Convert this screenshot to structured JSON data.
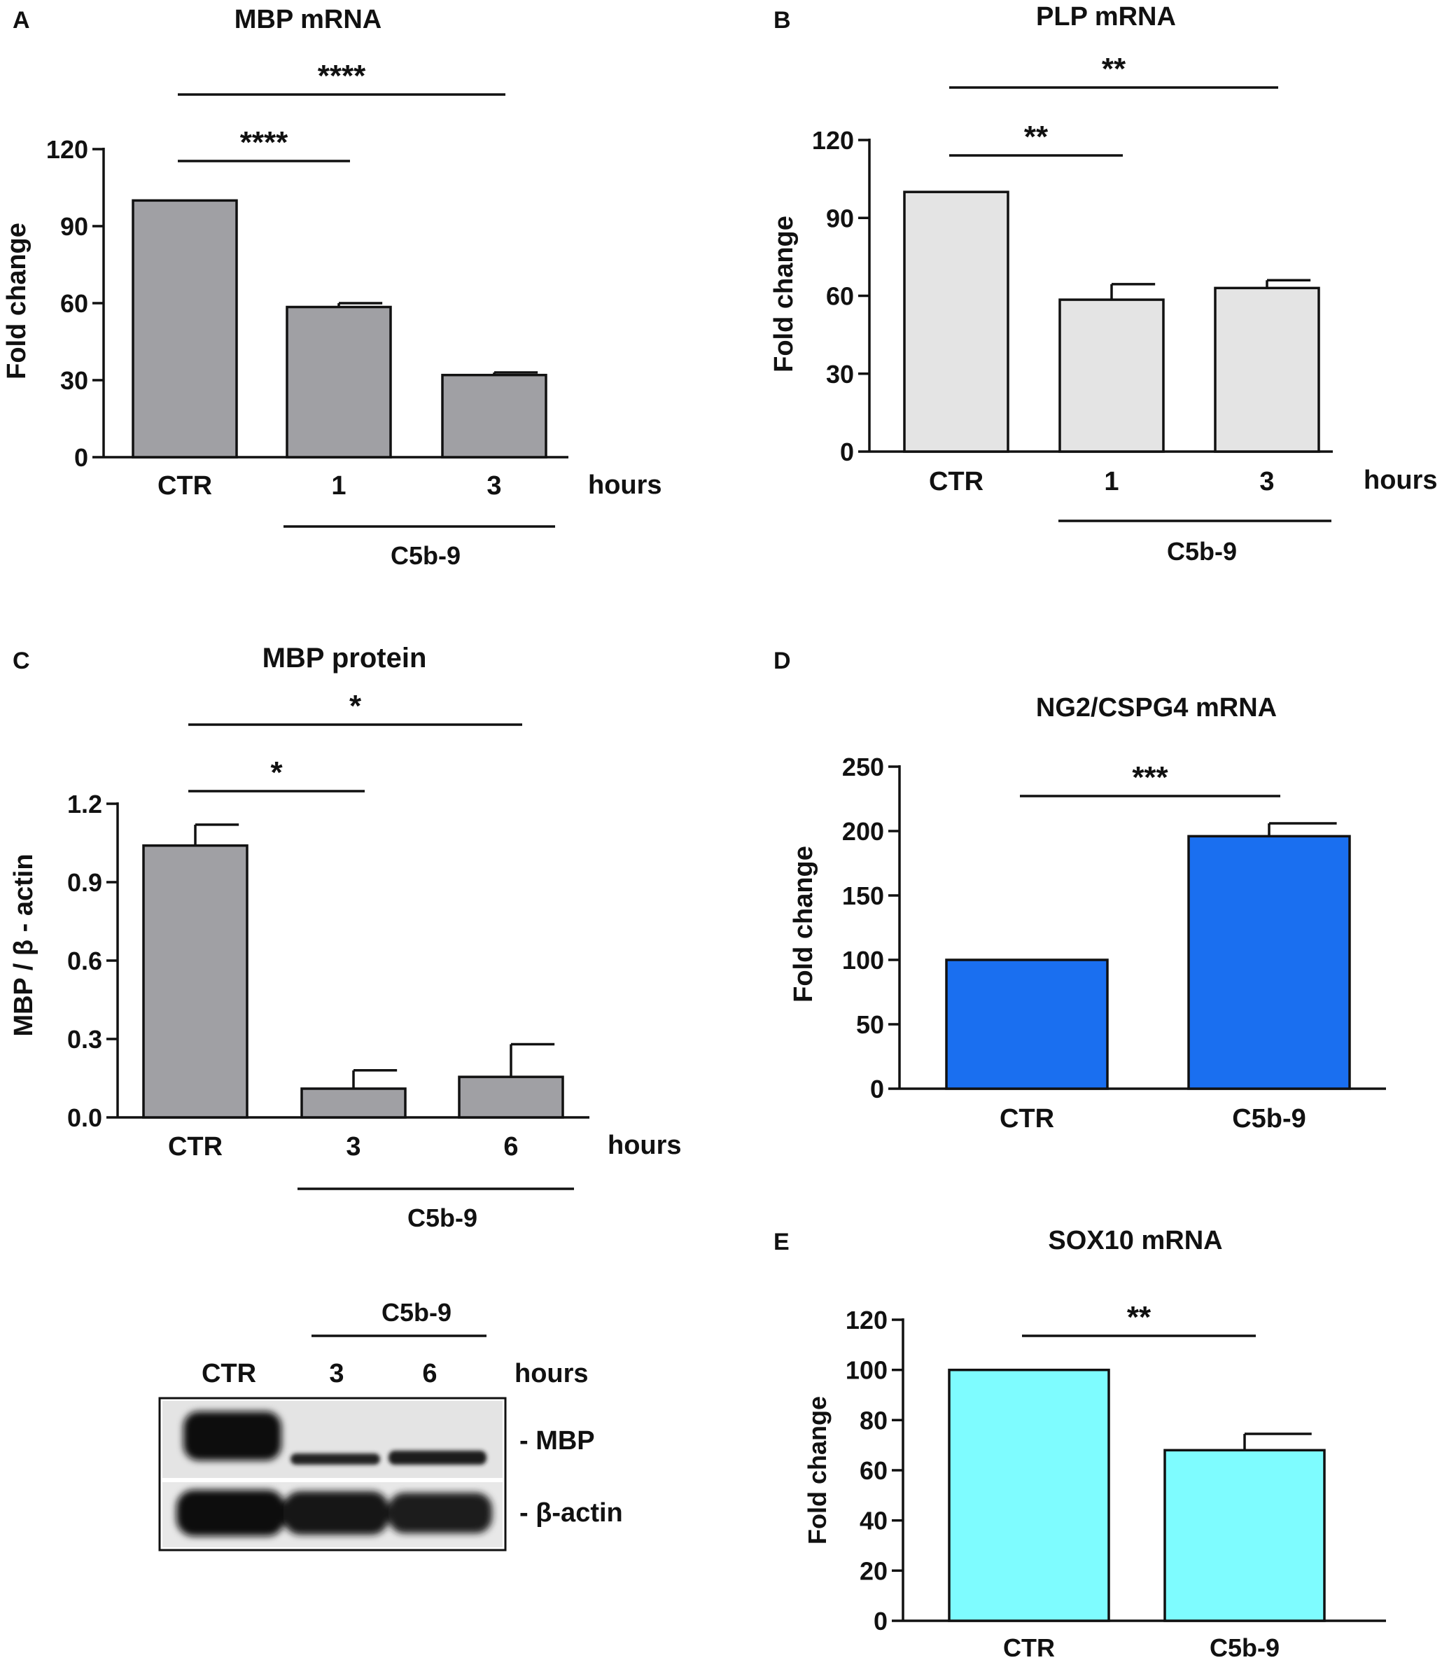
{
  "chart_data": [
    {
      "id": "A",
      "type": "bar",
      "panel_label": "A",
      "title": "MBP mRNA",
      "ylabel": "Fold change",
      "xlabel": "hours",
      "categories": [
        "CTR",
        "1",
        "3"
      ],
      "values": [
        100,
        58.5,
        32
      ],
      "errors": [
        0,
        1.5,
        1
      ],
      "ylim": [
        0,
        120
      ],
      "yticks": [
        "0",
        "30",
        "60",
        "90",
        "120"
      ],
      "bar_color": "#a0a0a4",
      "group_label": "C5b-9",
      "significance": [
        {
          "from": 0,
          "to": 1,
          "label": "****"
        },
        {
          "from": 0,
          "to": 2,
          "label": "****"
        }
      ]
    },
    {
      "id": "B",
      "type": "bar",
      "panel_label": "B",
      "title": "PLP mRNA",
      "ylabel": "Fold change",
      "xlabel": "hours",
      "categories": [
        "CTR",
        "1",
        "3"
      ],
      "values": [
        100,
        58.5,
        63
      ],
      "errors": [
        0,
        6,
        3
      ],
      "ylim": [
        0,
        120
      ],
      "yticks": [
        "0",
        "30",
        "60",
        "90",
        "120"
      ],
      "bar_color": "#e4e4e4",
      "group_label": "C5b-9",
      "significance": [
        {
          "from": 0,
          "to": 1,
          "label": "**"
        },
        {
          "from": 0,
          "to": 2,
          "label": "**"
        }
      ]
    },
    {
      "id": "C",
      "type": "bar",
      "panel_label": "C",
      "title": "MBP protein",
      "ylabel": "MBP / β - actin",
      "xlabel": "hours",
      "categories": [
        "CTR",
        "3",
        "6"
      ],
      "values": [
        1.04,
        0.11,
        0.155
      ],
      "errors": [
        0.08,
        0.07,
        0.125
      ],
      "ylim": [
        0,
        1.2
      ],
      "yticks": [
        "0.0",
        "0.3",
        "0.6",
        "0.9",
        "1.2"
      ],
      "bar_color": "#a0a0a4",
      "group_label": "C5b-9",
      "significance": [
        {
          "from": 0,
          "to": 1,
          "label": "*"
        },
        {
          "from": 0,
          "to": 2,
          "label": "*"
        }
      ]
    },
    {
      "id": "D",
      "type": "bar",
      "panel_label": "D",
      "title": "NG2/CSPG4 mRNA",
      "ylabel": "Fold change",
      "categories": [
        "CTR",
        "C5b-9"
      ],
      "values": [
        100,
        196
      ],
      "errors": [
        0,
        10
      ],
      "ylim": [
        0,
        250
      ],
      "yticks": [
        "0",
        "50",
        "100",
        "150",
        "200",
        "250"
      ],
      "bar_color": "#1a6ff0",
      "significance": [
        {
          "from": 0,
          "to": 1,
          "label": "***"
        }
      ]
    },
    {
      "id": "E",
      "type": "bar",
      "panel_label": "E",
      "title": "SOX10 mRNA",
      "ylabel": "Fold change",
      "categories": [
        "CTR",
        "C5b-9"
      ],
      "values": [
        100,
        68
      ],
      "errors": [
        0,
        6.5
      ],
      "ylim": [
        0,
        120
      ],
      "yticks": [
        "0",
        "20",
        "40",
        "60",
        "80",
        "100",
        "120"
      ],
      "bar_color": "#7efcff",
      "significance": [
        {
          "from": 0,
          "to": 1,
          "label": "**"
        }
      ]
    }
  ],
  "western_blot": {
    "group_label": "C5b-9",
    "lanes": [
      "CTR",
      "3",
      "6"
    ],
    "hours_label": "hours",
    "bands": [
      "- MBP",
      "- β-actin"
    ]
  }
}
